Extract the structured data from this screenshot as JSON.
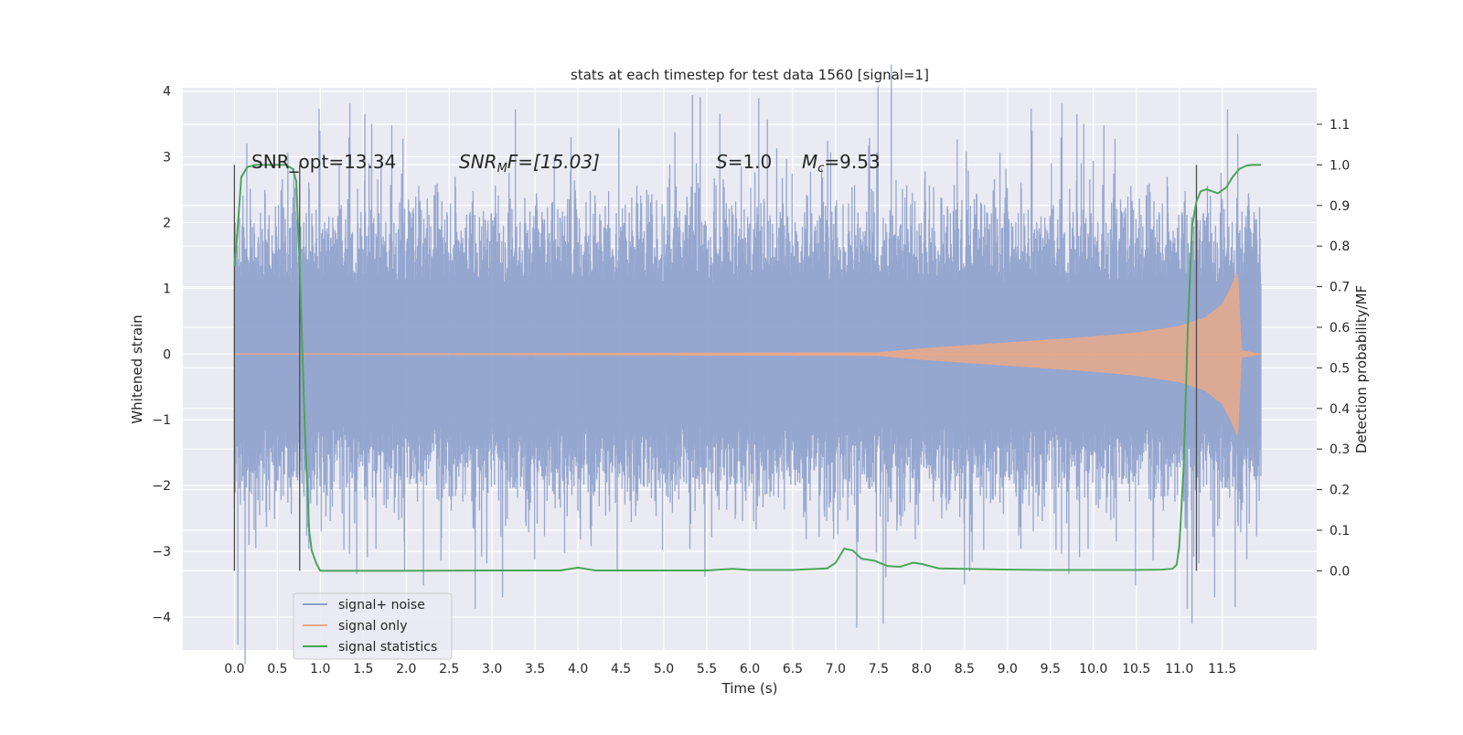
{
  "chart_data": {
    "type": "line",
    "title": "stats at each timestep for test data 1560 [signal=1]",
    "xlabel": "Time (s)",
    "ylabel": "Whitened strain",
    "y2label": "Detection probability/MF",
    "xlim": [
      -0.6,
      12.6
    ],
    "ylim": [
      -4.5,
      4.05
    ],
    "y2lim": [
      -0.195,
      1.19
    ],
    "x_ticks": [
      "0.0",
      "0.5",
      "1.0",
      "1.5",
      "2.0",
      "2.5",
      "3.0",
      "3.5",
      "4.0",
      "4.5",
      "5.0",
      "5.5",
      "6.0",
      "6.5",
      "7.0",
      "7.5",
      "8.0",
      "8.5",
      "9.0",
      "9.5",
      "10.0",
      "10.5",
      "11.0",
      "11.5"
    ],
    "y_ticks": [
      "4",
      "3",
      "2",
      "1",
      "0",
      "−1",
      "−2",
      "−3",
      "−4"
    ],
    "y2_ticks": [
      "1.1",
      "1.0",
      "0.9",
      "0.8",
      "0.7",
      "0.6",
      "0.5",
      "0.4",
      "0.3",
      "0.2",
      "0.1",
      "0.0"
    ],
    "grid": true,
    "legend_position": "lower-left",
    "legend": [
      {
        "label": "signal+ noise",
        "color": "#8c9fcb"
      },
      {
        "label": "signal only",
        "color": "#e8a98a"
      },
      {
        "label": "signal statistics",
        "color": "#4aa55a"
      }
    ],
    "annotations": {
      "snr_opt": "SNR_opt=13.34",
      "snr_mf_italic": "SNR",
      "snr_mf_sub": "M",
      "snr_mf_rest": "F=[15.03]",
      "s_italic": "S",
      "s_rest": "=1.0",
      "mc_italic": "M",
      "mc_sub": "c",
      "mc_rest": "=9.53"
    },
    "vertical_markers": [
      0.0,
      0.76,
      11.2
    ],
    "signal_noise": {
      "x_range": [
        0.0,
        11.95
      ],
      "typical_amplitude": 1.4,
      "notable_peaks": [
        {
          "x": 5.65,
          "y": 3.65
        },
        {
          "x": 11.68,
          "y": 3.35
        },
        {
          "x": 11.15,
          "y": -4.1
        },
        {
          "x": 11.65,
          "y": -3.85
        },
        {
          "x": 1.98,
          "y": -3.3
        },
        {
          "x": 8.5,
          "y": -3.5
        }
      ]
    },
    "signal_only": {
      "x_range": [
        0.0,
        11.95
      ],
      "envelope": [
        [
          0.0,
          0.0
        ],
        [
          7.5,
          0.02
        ],
        [
          8.0,
          0.08
        ],
        [
          9.0,
          0.17
        ],
        [
          10.0,
          0.26
        ],
        [
          10.5,
          0.32
        ],
        [
          11.0,
          0.42
        ],
        [
          11.3,
          0.55
        ],
        [
          11.5,
          0.75
        ],
        [
          11.6,
          1.0
        ],
        [
          11.68,
          1.25
        ],
        [
          11.72,
          0.05
        ],
        [
          11.95,
          0.0
        ]
      ]
    },
    "signal_statistics": {
      "x": [
        0.0,
        0.03,
        0.08,
        0.15,
        0.25,
        0.35,
        0.5,
        0.6,
        0.68,
        0.72,
        0.76,
        0.82,
        0.87,
        0.9,
        0.95,
        1.0,
        1.5,
        2.0,
        3.0,
        3.5,
        3.8,
        4.0,
        4.2,
        5.0,
        5.5,
        5.8,
        6.0,
        6.5,
        6.9,
        7.0,
        7.1,
        7.2,
        7.3,
        7.45,
        7.6,
        7.75,
        7.9,
        8.0,
        8.2,
        8.5,
        9.0,
        9.5,
        10.0,
        10.5,
        10.8,
        10.92,
        10.97,
        11.0,
        11.05,
        11.1,
        11.15,
        11.2,
        11.25,
        11.32,
        11.38,
        11.45,
        11.55,
        11.62,
        11.7,
        11.78,
        11.85,
        11.95
      ],
      "y": [
        0.75,
        0.82,
        0.97,
        0.995,
        1.0,
        1.0,
        1.0,
        1.0,
        0.99,
        0.96,
        0.75,
        0.35,
        0.1,
        0.05,
        0.02,
        0.0,
        0.0,
        0.0,
        0.001,
        0.001,
        0.001,
        0.008,
        0.001,
        0.001,
        0.001,
        0.005,
        0.002,
        0.002,
        0.006,
        0.02,
        0.055,
        0.05,
        0.03,
        0.025,
        0.012,
        0.01,
        0.02,
        0.017,
        0.006,
        0.005,
        0.003,
        0.002,
        0.002,
        0.002,
        0.003,
        0.005,
        0.015,
        0.06,
        0.25,
        0.6,
        0.85,
        0.91,
        0.935,
        0.94,
        0.935,
        0.93,
        0.945,
        0.97,
        0.99,
        0.998,
        1.0,
        1.0
      ]
    }
  }
}
